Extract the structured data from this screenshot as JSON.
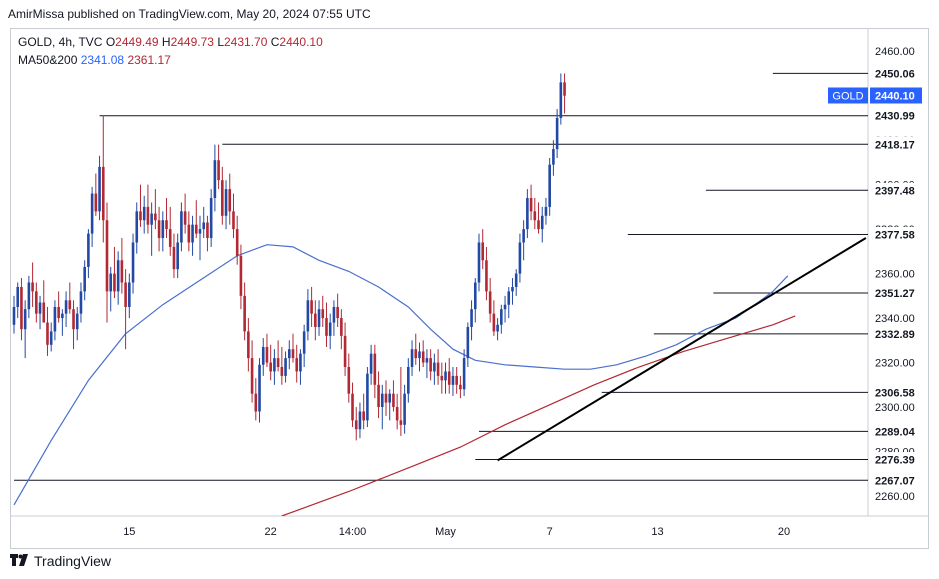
{
  "caption": "AmirMissa published on TradingView.com, May 20, 2024 07:55 UTC",
  "footer": {
    "brand": "TradingView"
  },
  "legend": {
    "symbol": "GOLD, 4h, TVC",
    "o_label": "O",
    "o": "2449.49",
    "h_label": "H",
    "h": "2449.73",
    "l_label": "L",
    "l": "2431.70",
    "c_label": "C",
    "c": "2440.10",
    "ma_label": "MA50&200",
    "ma50": "2341.08",
    "ma200": "2361.17"
  },
  "colors": {
    "up": "#2249a4",
    "down": "#b22833",
    "ma50": "#4a6fcf",
    "ma200": "#b22833",
    "trend": "#000000"
  },
  "chart_data": {
    "type": "candlestick",
    "symbol": "GOLD",
    "timeframe": "4h",
    "current_price": 2440.1,
    "price_badge": "GOLD",
    "y_range": [
      2251,
      2470
    ],
    "y_ticks": [
      2260,
      2280,
      2300,
      2320,
      2340,
      2360,
      2380,
      2400,
      2420,
      2440,
      2460
    ],
    "y_tick_labels": [
      "2260.00",
      "2280.00",
      "2300.00",
      "2320.00",
      "2340.00",
      "2360.00",
      "2380.00",
      "2400.00",
      "2420.00",
      "2440.00",
      "2460.00"
    ],
    "x_ticks": [
      {
        "label": "15",
        "bar": 31
      },
      {
        "label": "22",
        "bar": 69
      },
      {
        "label": "14:00",
        "bar": 91
      },
      {
        "label": "May",
        "bar": 116
      },
      {
        "label": "7",
        "bar": 144
      },
      {
        "label": "13",
        "bar": 173
      },
      {
        "label": "20",
        "bar": 207
      }
    ],
    "levels": [
      {
        "label": "2450.06",
        "value": 2450.06,
        "from_bar": 204
      },
      {
        "label": "2430.99",
        "value": 2430.99,
        "from_bar": 23
      },
      {
        "label": "2418.17",
        "value": 2418.17,
        "from_bar": 56
      },
      {
        "label": "2397.48",
        "value": 2397.48,
        "from_bar": 186
      },
      {
        "label": "2377.58",
        "value": 2377.58,
        "from_bar": 165
      },
      {
        "label": "2351.27",
        "value": 2351.27,
        "from_bar": 188
      },
      {
        "label": "2332.89",
        "value": 2332.89,
        "from_bar": 172
      },
      {
        "label": "2306.58",
        "value": 2306.58,
        "from_bar": 158
      },
      {
        "label": "2289.04",
        "value": 2289.04,
        "from_bar": 125
      },
      {
        "label": "2276.39",
        "value": 2276.39,
        "from_bar": 124
      },
      {
        "label": "2267.07",
        "value": 2267.07,
        "from_bar": 0
      }
    ],
    "trendline": {
      "from": {
        "bar": 130,
        "value": 2276
      },
      "to": {
        "bar": 229,
        "value": 2376
      }
    },
    "ma50": [
      [
        0,
        2256
      ],
      [
        10,
        2285
      ],
      [
        20,
        2312
      ],
      [
        30,
        2333
      ],
      [
        40,
        2346
      ],
      [
        50,
        2357
      ],
      [
        60,
        2368
      ],
      [
        68,
        2373
      ],
      [
        75,
        2372
      ],
      [
        82,
        2366
      ],
      [
        90,
        2361
      ],
      [
        98,
        2354
      ],
      [
        106,
        2345
      ],
      [
        112,
        2335
      ],
      [
        118,
        2326
      ],
      [
        124,
        2321
      ],
      [
        132,
        2319
      ],
      [
        140,
        2318
      ],
      [
        148,
        2317
      ],
      [
        155,
        2317
      ],
      [
        162,
        2319
      ],
      [
        170,
        2323
      ],
      [
        178,
        2328
      ],
      [
        186,
        2335
      ],
      [
        194,
        2340
      ],
      [
        200,
        2347
      ],
      [
        204,
        2352
      ],
      [
        208,
        2359
      ]
    ],
    "ma200": [
      [
        72,
        2251
      ],
      [
        90,
        2262
      ],
      [
        108,
        2274
      ],
      [
        120,
        2282
      ],
      [
        132,
        2292
      ],
      [
        144,
        2301
      ],
      [
        156,
        2310
      ],
      [
        168,
        2318
      ],
      [
        180,
        2325
      ],
      [
        192,
        2331
      ],
      [
        204,
        2337
      ],
      [
        210,
        2341
      ]
    ],
    "candles_ohlc": [
      [
        2337,
        2350,
        2333,
        2345
      ],
      [
        2345,
        2356,
        2340,
        2354
      ],
      [
        2354,
        2358,
        2330,
        2335
      ],
      [
        2335,
        2348,
        2322,
        2344
      ],
      [
        2344,
        2359,
        2340,
        2356
      ],
      [
        2356,
        2365,
        2345,
        2352
      ],
      [
        2352,
        2356,
        2338,
        2342
      ],
      [
        2342,
        2350,
        2335,
        2347
      ],
      [
        2347,
        2357,
        2340,
        2338
      ],
      [
        2338,
        2345,
        2323,
        2328
      ],
      [
        2328,
        2338,
        2325,
        2334
      ],
      [
        2334,
        2348,
        2330,
        2345
      ],
      [
        2345,
        2352,
        2338,
        2340
      ],
      [
        2340,
        2344,
        2332,
        2342
      ],
      [
        2342,
        2352,
        2336,
        2348
      ],
      [
        2348,
        2356,
        2342,
        2344
      ],
      [
        2344,
        2348,
        2326,
        2335
      ],
      [
        2335,
        2345,
        2330,
        2342
      ],
      [
        2342,
        2356,
        2338,
        2352
      ],
      [
        2352,
        2366,
        2348,
        2363
      ],
      [
        2363,
        2380,
        2358,
        2378
      ],
      [
        2378,
        2399,
        2372,
        2396
      ],
      [
        2396,
        2405,
        2386,
        2388
      ],
      [
        2388,
        2413,
        2384,
        2408
      ],
      [
        2408,
        2431,
        2374,
        2384
      ],
      [
        2384,
        2392,
        2338,
        2352
      ],
      [
        2352,
        2363,
        2343,
        2360
      ],
      [
        2360,
        2372,
        2349,
        2352
      ],
      [
        2352,
        2370,
        2346,
        2366
      ],
      [
        2366,
        2376,
        2351,
        2356
      ],
      [
        2356,
        2362,
        2326,
        2345
      ],
      [
        2345,
        2360,
        2340,
        2356
      ],
      [
        2356,
        2378,
        2351,
        2374
      ],
      [
        2374,
        2392,
        2369,
        2388
      ],
      [
        2388,
        2400,
        2381,
        2384
      ],
      [
        2384,
        2395,
        2378,
        2390
      ],
      [
        2390,
        2400,
        2378,
        2382
      ],
      [
        2382,
        2392,
        2368,
        2387
      ],
      [
        2387,
        2398,
        2380,
        2384
      ],
      [
        2384,
        2390,
        2370,
        2376
      ],
      [
        2376,
        2388,
        2370,
        2384
      ],
      [
        2384,
        2394,
        2376,
        2380
      ],
      [
        2380,
        2390,
        2368,
        2372
      ],
      [
        2372,
        2378,
        2358,
        2362
      ],
      [
        2362,
        2378,
        2358,
        2374
      ],
      [
        2374,
        2392,
        2370,
        2388
      ],
      [
        2388,
        2396,
        2378,
        2382
      ],
      [
        2382,
        2388,
        2370,
        2374
      ],
      [
        2374,
        2386,
        2368,
        2382
      ],
      [
        2382,
        2393,
        2376,
        2378
      ],
      [
        2378,
        2386,
        2366,
        2380
      ],
      [
        2380,
        2390,
        2376,
        2383
      ],
      [
        2383,
        2386,
        2370,
        2376
      ],
      [
        2376,
        2398,
        2372,
        2394
      ],
      [
        2394,
        2418,
        2388,
        2411
      ],
      [
        2411,
        2418,
        2398,
        2402
      ],
      [
        2402,
        2408,
        2382,
        2386
      ],
      [
        2386,
        2402,
        2380,
        2398
      ],
      [
        2398,
        2405,
        2382,
        2388
      ],
      [
        2388,
        2396,
        2376,
        2380
      ],
      [
        2380,
        2386,
        2364,
        2368
      ],
      [
        2368,
        2373,
        2344,
        2350
      ],
      [
        2350,
        2356,
        2330,
        2334
      ],
      [
        2334,
        2340,
        2316,
        2322
      ],
      [
        2322,
        2330,
        2302,
        2306
      ],
      [
        2306,
        2313,
        2294,
        2298
      ],
      [
        2298,
        2322,
        2293,
        2319
      ],
      [
        2319,
        2331,
        2314,
        2327
      ],
      [
        2327,
        2333,
        2318,
        2320
      ],
      [
        2320,
        2328,
        2312,
        2316
      ],
      [
        2316,
        2326,
        2310,
        2322
      ],
      [
        2322,
        2330,
        2316,
        2318
      ],
      [
        2318,
        2327,
        2310,
        2314
      ],
      [
        2314,
        2325,
        2311,
        2322
      ],
      [
        2322,
        2330,
        2317,
        2326
      ],
      [
        2326,
        2333,
        2320,
        2322
      ],
      [
        2322,
        2328,
        2311,
        2316
      ],
      [
        2316,
        2326,
        2310,
        2324
      ],
      [
        2324,
        2337,
        2318,
        2334
      ],
      [
        2334,
        2353,
        2330,
        2348
      ],
      [
        2348,
        2354,
        2336,
        2342
      ],
      [
        2342,
        2348,
        2330,
        2336
      ],
      [
        2336,
        2348,
        2332,
        2344
      ],
      [
        2344,
        2350,
        2336,
        2340
      ],
      [
        2340,
        2347,
        2327,
        2332
      ],
      [
        2332,
        2342,
        2326,
        2338
      ],
      [
        2338,
        2348,
        2332,
        2345
      ],
      [
        2345,
        2351,
        2336,
        2340
      ],
      [
        2340,
        2344,
        2326,
        2332
      ],
      [
        2332,
        2338,
        2314,
        2318
      ],
      [
        2318,
        2324,
        2302,
        2306
      ],
      [
        2306,
        2311,
        2291,
        2294
      ],
      [
        2294,
        2300,
        2285,
        2290
      ],
      [
        2290,
        2302,
        2286,
        2298
      ],
      [
        2298,
        2306,
        2290,
        2294
      ],
      [
        2294,
        2318,
        2291,
        2315
      ],
      [
        2315,
        2328,
        2310,
        2324
      ],
      [
        2324,
        2328,
        2304,
        2310
      ],
      [
        2310,
        2316,
        2295,
        2300
      ],
      [
        2300,
        2310,
        2290,
        2306
      ],
      [
        2306,
        2312,
        2296,
        2302
      ],
      [
        2302,
        2308,
        2294,
        2306
      ],
      [
        2306,
        2312,
        2298,
        2300
      ],
      [
        2300,
        2306,
        2290,
        2294
      ],
      [
        2294,
        2318,
        2287,
        2292
      ],
      [
        2292,
        2310,
        2288,
        2306
      ],
      [
        2306,
        2322,
        2302,
        2318
      ],
      [
        2318,
        2330,
        2314,
        2326
      ],
      [
        2326,
        2333,
        2319,
        2322
      ],
      [
        2322,
        2329,
        2316,
        2325
      ],
      [
        2325,
        2330,
        2318,
        2320
      ],
      [
        2320,
        2326,
        2313,
        2322
      ],
      [
        2322,
        2326,
        2312,
        2316
      ],
      [
        2316,
        2324,
        2310,
        2320
      ],
      [
        2320,
        2326,
        2310,
        2314
      ],
      [
        2314,
        2320,
        2306,
        2312
      ],
      [
        2312,
        2320,
        2306,
        2316
      ],
      [
        2316,
        2322,
        2306,
        2310
      ],
      [
        2310,
        2318,
        2305,
        2314
      ],
      [
        2314,
        2318,
        2306,
        2310
      ],
      [
        2310,
        2314,
        2304,
        2308
      ],
      [
        2308,
        2326,
        2305,
        2322
      ],
      [
        2322,
        2338,
        2318,
        2336
      ],
      [
        2336,
        2348,
        2330,
        2344
      ],
      [
        2344,
        2358,
        2338,
        2356
      ],
      [
        2356,
        2378,
        2352,
        2374
      ],
      [
        2374,
        2380,
        2362,
        2366
      ],
      [
        2366,
        2372,
        2348,
        2352
      ],
      [
        2352,
        2358,
        2338,
        2342
      ],
      [
        2342,
        2348,
        2332,
        2334
      ],
      [
        2334,
        2340,
        2330,
        2337
      ],
      [
        2337,
        2346,
        2333,
        2344
      ],
      [
        2344,
        2350,
        2338,
        2346
      ],
      [
        2346,
        2354,
        2340,
        2352
      ],
      [
        2352,
        2358,
        2346,
        2354
      ],
      [
        2354,
        2362,
        2350,
        2360
      ],
      [
        2360,
        2378,
        2356,
        2374
      ],
      [
        2374,
        2384,
        2366,
        2380
      ],
      [
        2380,
        2398,
        2376,
        2394
      ],
      [
        2394,
        2400,
        2384,
        2388
      ],
      [
        2388,
        2394,
        2380,
        2384
      ],
      [
        2384,
        2392,
        2378,
        2380
      ],
      [
        2380,
        2390,
        2374,
        2386
      ],
      [
        2386,
        2394,
        2382,
        2390
      ],
      [
        2390,
        2412,
        2386,
        2409
      ],
      [
        2409,
        2420,
        2404,
        2416
      ],
      [
        2416,
        2434,
        2412,
        2430
      ],
      [
        2430,
        2450,
        2427,
        2446
      ],
      [
        2446,
        2450,
        2432,
        2440
      ]
    ],
    "candles_note": "Approximate 4h OHLC bars traced from the chart, earliest to latest; the final bar is the live candle (O 2449.49, H 2449.73, L 2431.70, C 2440.10)."
  }
}
